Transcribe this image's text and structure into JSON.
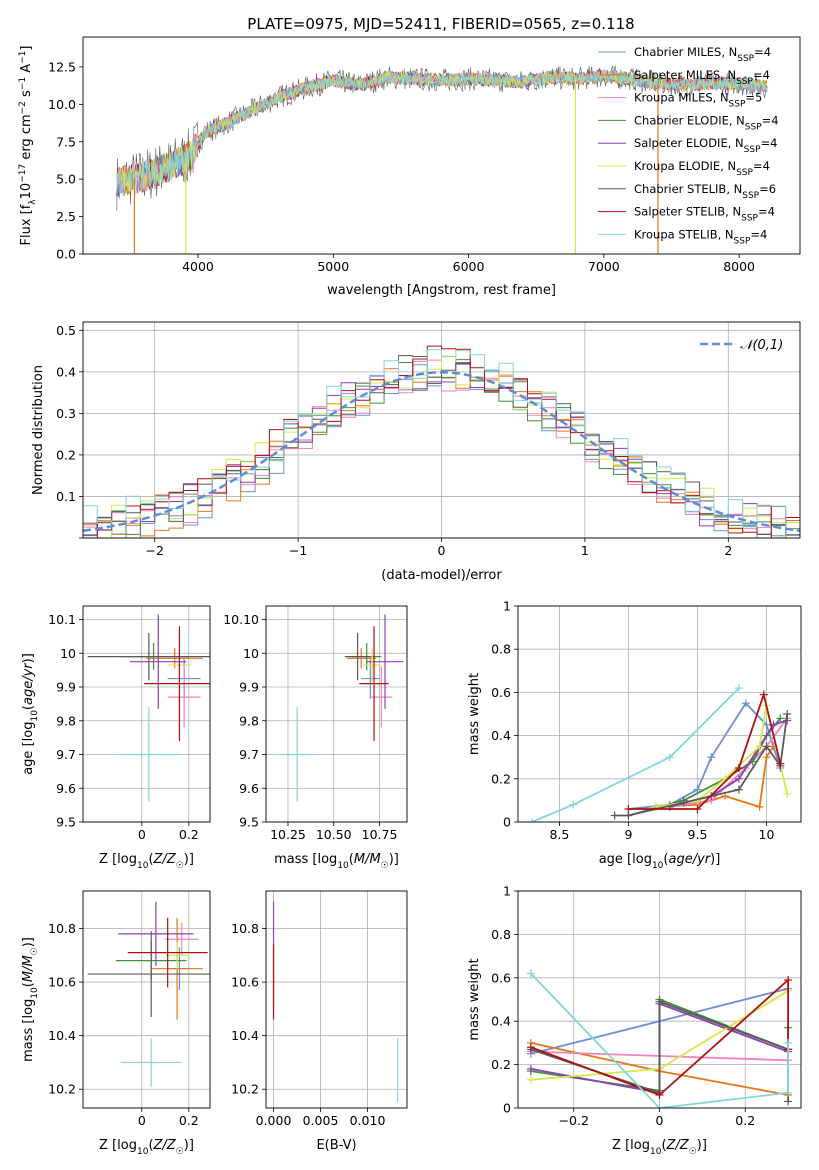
{
  "figure_title": "PLATE=0975, MJD=52411, FIBERID=0565, z=0.118",
  "models": [
    {
      "name": "Chabrier MILES",
      "color": "#6b8fd6",
      "nssp": "4"
    },
    {
      "name": "Salpeter MILES",
      "color": "#e8761c",
      "nssp": "4"
    },
    {
      "name": "Kroupa MILES",
      "color": "#f084be",
      "nssp": "5"
    },
    {
      "name": "Chabrier ELODIE",
      "color": "#3f8f3f",
      "nssp": "4"
    },
    {
      "name": "Salpeter ELODIE",
      "color": "#8f3fb0",
      "nssp": "4"
    },
    {
      "name": "Kroupa ELODIE",
      "color": "#d4e84a",
      "nssp": "4"
    },
    {
      "name": "Chabrier STELIB",
      "color": "#5a5a5a",
      "nssp": "6"
    },
    {
      "name": "Salpeter STELIB",
      "color": "#b01010",
      "nssp": "4"
    },
    {
      "name": "Kroupa STELIB",
      "color": "#84d6d8",
      "nssp": "4"
    }
  ],
  "chart_data": [
    {
      "id": "spectrum",
      "type": "line",
      "xlabel": "wavelength [Angstrom, rest frame]",
      "ylabel": "Flux [f_λ 10^-17 erg cm^-2 s^-1 A^-1]",
      "xlim": [
        3150,
        8450
      ],
      "ylim": [
        0,
        14.5
      ],
      "xticks": [
        4000,
        5000,
        6000,
        7000,
        8000
      ],
      "yticks": [
        0.0,
        2.5,
        5.0,
        7.5,
        10.0,
        12.5
      ],
      "grid": false,
      "legend": "right",
      "continuum": [
        [
          3400,
          4.8
        ],
        [
          3600,
          5.2
        ],
        [
          3800,
          5.9
        ],
        [
          3950,
          6.6
        ],
        [
          4050,
          8.1
        ],
        [
          4200,
          8.7
        ],
        [
          4400,
          9.6
        ],
        [
          4600,
          10.5
        ],
        [
          4800,
          11.1
        ],
        [
          5000,
          11.6
        ],
        [
          5200,
          11.3
        ],
        [
          5400,
          11.8
        ],
        [
          5600,
          11.7
        ],
        [
          5800,
          11.6
        ],
        [
          6000,
          11.7
        ],
        [
          6200,
          11.6
        ],
        [
          6400,
          11.5
        ],
        [
          6600,
          11.8
        ],
        [
          6800,
          11.7
        ],
        [
          7000,
          11.9
        ],
        [
          7200,
          11.7
        ],
        [
          7400,
          11.4
        ],
        [
          7600,
          11.3
        ],
        [
          7800,
          11.4
        ],
        [
          8000,
          11.4
        ],
        [
          8200,
          11.2
        ]
      ],
      "dropouts": [
        [
          3530,
          "#e8761c"
        ],
        [
          3910,
          "#d4e84a"
        ],
        [
          6790,
          "#d4e84a"
        ],
        [
          7400,
          "#e8761c"
        ]
      ]
    },
    {
      "id": "residuals",
      "type": "histogram",
      "xlabel": "(data-model)/error",
      "ylabel": "Normed distribution",
      "xlim": [
        -2.5,
        2.5
      ],
      "ylim": [
        0,
        0.52
      ],
      "xticks": [
        -2,
        -1,
        0,
        1,
        2
      ],
      "yticks": [
        0.0,
        0.1,
        0.2,
        0.3,
        0.4,
        0.5
      ],
      "grid": true,
      "legend": "top-right",
      "reference_label": "𝒩(0,1)",
      "reference_color": "#5b8dd9",
      "bin_width": 0.1
    },
    {
      "id": "age_vs_Z",
      "type": "scatter",
      "xlabel": "Z [log10(Z/Z☉)]",
      "ylabel": "age  [log10(age/yr)]",
      "xlim": [
        -0.25,
        0.29
      ],
      "ylim": [
        9.5,
        10.14
      ],
      "xticks": [
        0.0,
        0.2
      ],
      "yticks": [
        9.5,
        9.6,
        9.7,
        9.8,
        9.9,
        10.0,
        10.1
      ],
      "grid": true,
      "points": [
        {
          "x": 0.18,
          "y": 9.925,
          "xerr": 0.07,
          "yerr": 0.06
        },
        {
          "x": 0.14,
          "y": 9.985,
          "xerr": 0.12,
          "yerr": 0.03
        },
        {
          "x": 0.18,
          "y": 9.87,
          "xerr": 0.07,
          "yerr": 0.09
        },
        {
          "x": 0.05,
          "y": 9.99,
          "xerr": 0.15,
          "yerr": 0.04
        },
        {
          "x": 0.07,
          "y": 9.975,
          "xerr": 0.12,
          "yerr": 0.14
        },
        {
          "x": 0.16,
          "y": 9.965,
          "xerr": 0.05,
          "yerr": 0.05
        },
        {
          "x": 0.03,
          "y": 9.99,
          "xerr": 0.26,
          "yerr": 0.07
        },
        {
          "x": 0.16,
          "y": 9.91,
          "xerr": 0.15,
          "yerr": 0.17
        },
        {
          "x": 0.03,
          "y": 9.7,
          "xerr": 0.13,
          "yerr": 0.14
        }
      ]
    },
    {
      "id": "age_vs_mass",
      "type": "scatter",
      "xlabel": "mass [log10(M/M☉)]",
      "ylabel": "",
      "xlim": [
        10.13,
        10.9
      ],
      "ylim": [
        9.5,
        10.14
      ],
      "xticks": [
        10.25,
        10.5,
        10.75
      ],
      "yticks": [
        9.5,
        9.6,
        9.7,
        9.8,
        9.9,
        10.0,
        10.1
      ],
      "grid": true,
      "points": [
        {
          "x": 10.7,
          "y": 9.925,
          "xerr": 0.05,
          "yerr": 0.06
        },
        {
          "x": 10.65,
          "y": 9.985,
          "xerr": 0.08,
          "yerr": 0.03
        },
        {
          "x": 10.76,
          "y": 9.87,
          "xerr": 0.06,
          "yerr": 0.09
        },
        {
          "x": 10.68,
          "y": 9.99,
          "xerr": 0.08,
          "yerr": 0.04
        },
        {
          "x": 10.78,
          "y": 9.975,
          "xerr": 0.1,
          "yerr": 0.14
        },
        {
          "x": 10.71,
          "y": 9.965,
          "xerr": 0.05,
          "yerr": 0.05
        },
        {
          "x": 10.63,
          "y": 9.99,
          "xerr": 0.07,
          "yerr": 0.07
        },
        {
          "x": 10.72,
          "y": 9.91,
          "xerr": 0.08,
          "yerr": 0.17
        },
        {
          "x": 10.3,
          "y": 9.7,
          "xerr": 0.1,
          "yerr": 0.14
        }
      ]
    },
    {
      "id": "weight_vs_age",
      "type": "line",
      "xlabel": "age  [log10(age/yr)]",
      "ylabel": "mass weight",
      "xlim": [
        8.2,
        10.25
      ],
      "ylim": [
        0,
        1.0
      ],
      "xticks": [
        8.5,
        9.0,
        9.5,
        10.0
      ],
      "yticks": [
        0.0,
        0.2,
        0.4,
        0.6,
        0.8,
        1.0
      ],
      "grid": true,
      "series": [
        {
          "x": [
            9.0,
            9.3,
            9.5,
            9.6,
            9.85,
            10.0,
            10.1
          ],
          "y": [
            0.06,
            0.08,
            0.15,
            0.3,
            0.55,
            0.45,
            0.25
          ]
        },
        {
          "x": [
            9.2,
            9.5,
            9.7,
            9.95,
            10.0,
            10.05
          ],
          "y": [
            0.07,
            0.08,
            0.12,
            0.07,
            0.3,
            0.35
          ]
        },
        {
          "x": [
            9.3,
            9.6,
            9.85,
            10.0,
            10.15
          ],
          "y": [
            0.07,
            0.1,
            0.25,
            0.35,
            0.48
          ]
        },
        {
          "x": [
            9.0,
            9.4,
            9.7,
            9.9,
            10.0,
            10.1
          ],
          "y": [
            0.03,
            0.1,
            0.2,
            0.28,
            0.4,
            0.48
          ]
        },
        {
          "x": [
            9.3,
            9.6,
            9.8,
            9.95,
            10.05,
            10.15
          ],
          "y": [
            0.07,
            0.12,
            0.2,
            0.35,
            0.45,
            0.47
          ]
        },
        {
          "x": [
            9.2,
            9.5,
            9.7,
            9.95,
            10.0,
            10.15
          ],
          "y": [
            0.07,
            0.1,
            0.2,
            0.35,
            0.54,
            0.13
          ]
        },
        {
          "x": [
            8.9,
            9.0,
            9.4,
            9.8,
            10.0,
            10.1,
            10.15
          ],
          "y": [
            0.03,
            0.03,
            0.09,
            0.15,
            0.35,
            0.26,
            0.5
          ]
        },
        {
          "x": [
            9.0,
            9.5,
            9.8,
            9.98,
            10.1
          ],
          "y": [
            0.06,
            0.06,
            0.25,
            0.59,
            0.27
          ]
        },
        {
          "x": [
            8.3,
            8.6,
            9.3,
            9.8
          ],
          "y": [
            0.0,
            0.08,
            0.3,
            0.62
          ]
        }
      ]
    },
    {
      "id": "mass_vs_Z",
      "type": "scatter",
      "xlabel": "Z [log10(Z/Z☉)]",
      "ylabel": "mass [log10(M/M☉)]",
      "xlim": [
        -0.25,
        0.29
      ],
      "ylim": [
        10.13,
        10.94
      ],
      "xticks": [
        0.0,
        0.2
      ],
      "yticks": [
        10.2,
        10.4,
        10.6,
        10.8
      ],
      "grid": true,
      "points": [
        {
          "x": 0.16,
          "y": 10.65,
          "xerr": 0.05,
          "yerr": 0.08
        },
        {
          "x": 0.15,
          "y": 10.65,
          "xerr": 0.11,
          "yerr": 0.19
        },
        {
          "x": 0.17,
          "y": 10.76,
          "xerr": 0.07,
          "yerr": 0.06
        },
        {
          "x": 0.04,
          "y": 10.68,
          "xerr": 0.15,
          "yerr": 0.07
        },
        {
          "x": 0.06,
          "y": 10.78,
          "xerr": 0.16,
          "yerr": 0.12
        },
        {
          "x": 0.15,
          "y": 10.7,
          "xerr": 0.05,
          "yerr": 0.05
        },
        {
          "x": 0.04,
          "y": 10.63,
          "xerr": 0.27,
          "yerr": 0.16
        },
        {
          "x": 0.11,
          "y": 10.71,
          "xerr": 0.17,
          "yerr": 0.13
        },
        {
          "x": 0.04,
          "y": 10.3,
          "xerr": 0.13,
          "yerr": 0.09
        }
      ]
    },
    {
      "id": "mass_vs_ebv",
      "type": "scatter",
      "xlabel": "E(B-V)",
      "ylabel": "",
      "xlim": [
        -0.0008,
        0.0142
      ],
      "ylim": [
        10.13,
        10.94
      ],
      "xticks": [
        0.0,
        0.005,
        0.01
      ],
      "yticks": [
        10.2,
        10.4,
        10.6,
        10.8
      ],
      "grid": true,
      "points": [
        {
          "x": 0.0,
          "y": 10.7,
          "yerr": 0.2
        },
        {
          "x": 0.0,
          "y": 10.6,
          "yerr": 0.14
        },
        {
          "x": 0.0132,
          "y": 10.27,
          "yerr": 0.12
        }
      ]
    },
    {
      "id": "weight_vs_Z",
      "type": "line",
      "xlabel": "Z [log10(Z/Z☉)]",
      "ylabel": "mass weight",
      "xlim": [
        -0.33,
        0.33
      ],
      "ylim": [
        0,
        1.0
      ],
      "xticks": [
        -0.2,
        0.0,
        0.2
      ],
      "yticks": [
        0.0,
        0.2,
        0.4,
        0.6,
        0.8,
        1.0
      ],
      "grid": true,
      "series": [
        {
          "x": [
            -0.3,
            0.3
          ],
          "y": [
            0.25,
            0.55
          ]
        },
        {
          "x": [
            -0.3,
            0.0,
            0.3
          ],
          "y": [
            0.3,
            0.17,
            0.06
          ]
        },
        {
          "x": [
            -0.3,
            0.3
          ],
          "y": [
            0.26,
            0.22
          ]
        },
        {
          "x": [
            -0.3,
            0.0,
            0.0,
            0.3,
            0.3
          ],
          "y": [
            0.17,
            0.08,
            0.5,
            0.27,
            0.37
          ]
        },
        {
          "x": [
            -0.3,
            0.0,
            0.0,
            0.3
          ],
          "y": [
            0.18,
            0.07,
            0.48,
            0.26
          ]
        },
        {
          "x": [
            -0.3,
            0.0,
            0.3
          ],
          "y": [
            0.13,
            0.18,
            0.54
          ]
        },
        {
          "x": [
            -0.3,
            0.0,
            0.0,
            0.3,
            0.3
          ],
          "y": [
            0.27,
            0.07,
            0.49,
            0.27,
            0.03
          ]
        },
        {
          "x": [
            -0.3,
            0.0,
            0.3,
            0.3
          ],
          "y": [
            0.28,
            0.06,
            0.59,
            0.27
          ]
        },
        {
          "x": [
            -0.3,
            0.0,
            0.3,
            0.3
          ],
          "y": [
            0.62,
            0.0,
            0.07,
            0.3
          ]
        }
      ]
    }
  ]
}
